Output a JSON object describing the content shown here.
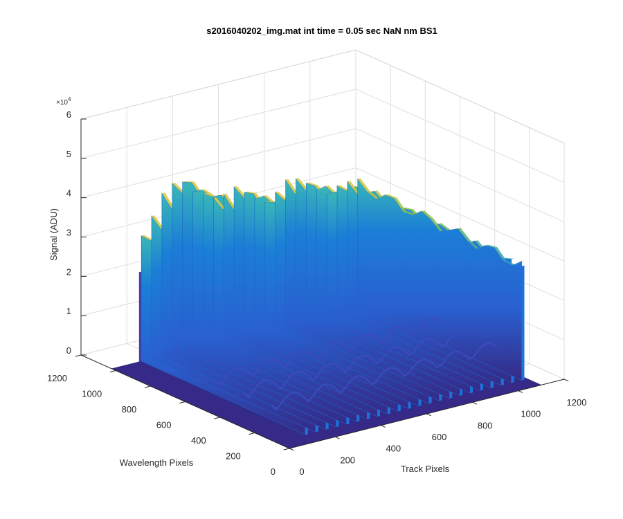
{
  "chart_data": {
    "type": "surface",
    "title": "s2016040202_img.mat int time = 0.05 sec  NaN nm BS1",
    "xlabel": "Track Pixels",
    "ylabel": "Wavelength Pixels",
    "zlabel": "Signal (ADU)",
    "z_exponent_label": "×10",
    "z_exponent_power": "4",
    "xlim": [
      0,
      1200
    ],
    "ylim": [
      0,
      1200
    ],
    "zlim": [
      0,
      60000
    ],
    "x_ticks": [
      "0",
      "200",
      "400",
      "600",
      "800",
      "1000",
      "1200"
    ],
    "y_ticks": [
      "0",
      "200",
      "400",
      "600",
      "800",
      "1000",
      "1200"
    ],
    "z_ticks": [
      "0",
      "1",
      "2",
      "3",
      "4",
      "5",
      "6"
    ],
    "grid": true,
    "colormap": "parula",
    "colors": {
      "low": "#352a87",
      "mid": "#1b7fd6",
      "high": "#e0c94a"
    },
    "surface_extent": {
      "track": [
        0,
        1100
      ],
      "wavelength": [
        0,
        1024
      ]
    },
    "ridge_track_range": [
      120,
      1100
    ],
    "ridge_peaks_adu": [
      {
        "track": 130,
        "near": 26000,
        "far": 33000
      },
      {
        "track": 175,
        "near": 28000,
        "far": 36000
      },
      {
        "track": 220,
        "near": 31000,
        "far": 40000
      },
      {
        "track": 265,
        "near": 30000,
        "far": 42000
      },
      {
        "track": 310,
        "near": 32000,
        "far": 43000
      },
      {
        "track": 355,
        "near": 30000,
        "far": 41000
      },
      {
        "track": 400,
        "near": 30000,
        "far": 40000
      },
      {
        "track": 445,
        "near": 29000,
        "far": 37000
      },
      {
        "track": 490,
        "near": 28000,
        "far": 36000
      },
      {
        "track": 535,
        "near": 29000,
        "far": 37000
      },
      {
        "track": 580,
        "near": 30000,
        "far": 36000
      },
      {
        "track": 625,
        "near": 28000,
        "far": 35000
      },
      {
        "track": 670,
        "near": 28000,
        "far": 34000
      },
      {
        "track": 715,
        "near": 30000,
        "far": 35000
      },
      {
        "track": 760,
        "near": 31000,
        "far": 36000
      },
      {
        "track": 805,
        "near": 32000,
        "far": 35000
      },
      {
        "track": 850,
        "near": 31000,
        "far": 34000
      },
      {
        "track": 895,
        "near": 32000,
        "far": 33000
      },
      {
        "track": 940,
        "near": 30000,
        "far": 32000
      },
      {
        "track": 985,
        "near": 31000,
        "far": 33000
      },
      {
        "track": 1030,
        "near": 30000,
        "far": 32000
      },
      {
        "track": 1075,
        "near": 29000,
        "far": 31000
      }
    ],
    "base_level_adu": 12000
  }
}
